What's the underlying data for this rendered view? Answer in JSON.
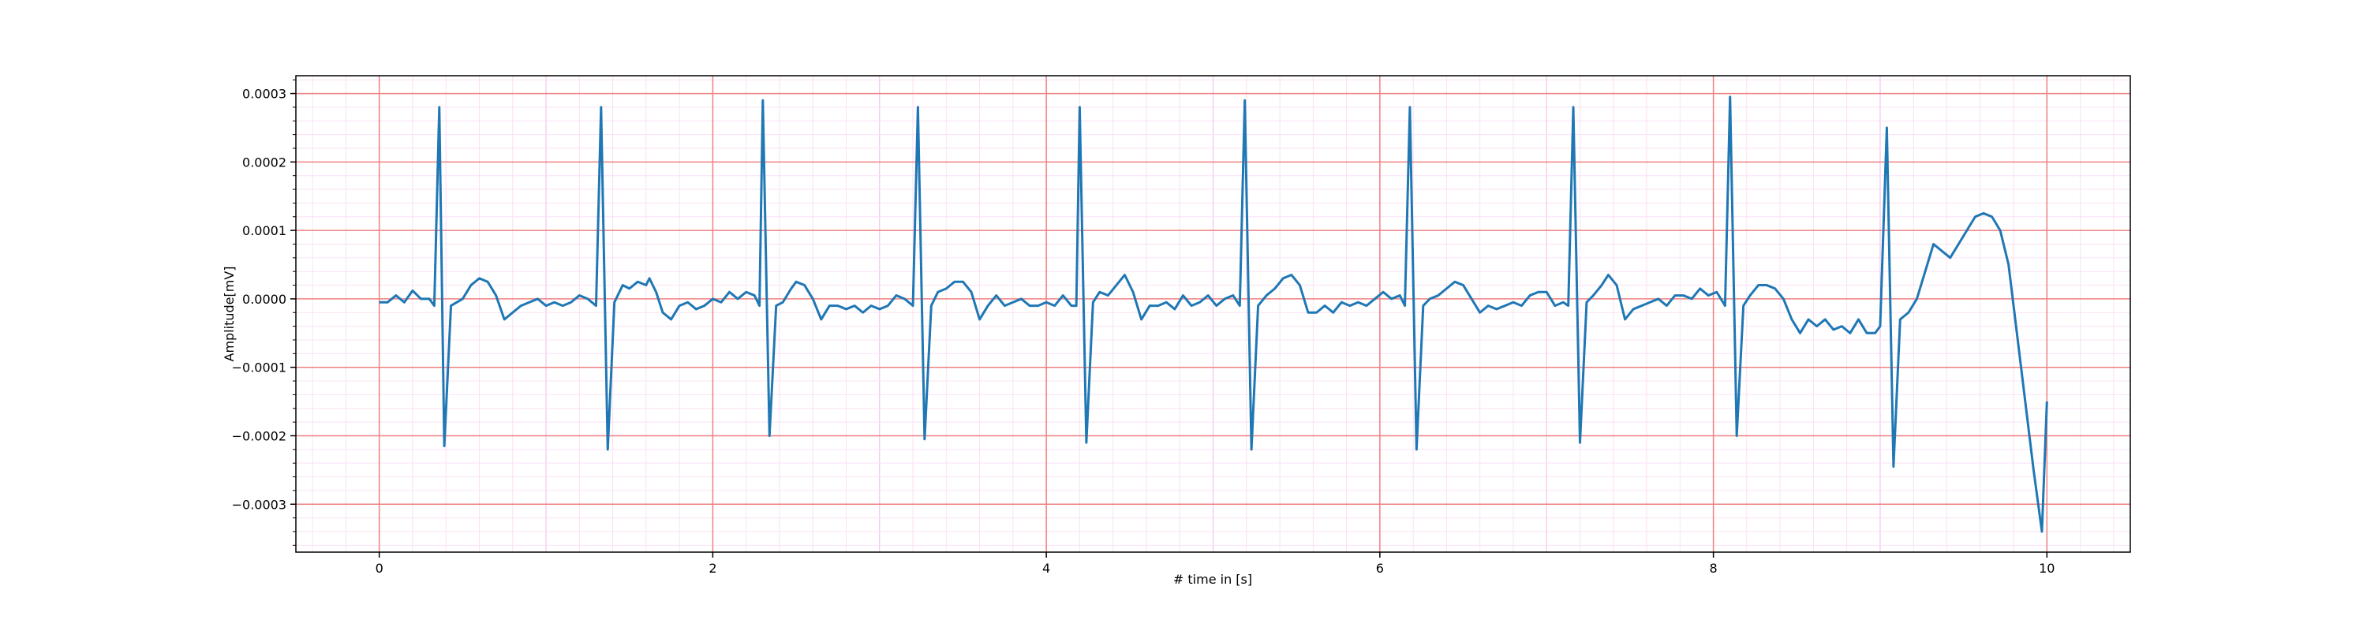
{
  "chart_data": {
    "type": "line",
    "xlabel": "# time in [s]",
    "ylabel": "Amplitude[mV]",
    "xlim": [
      -0.5,
      10.5
    ],
    "ylim": [
      -0.00037,
      0.000326
    ],
    "xticks": [
      0,
      2,
      4,
      6,
      8,
      10
    ],
    "yticks": [
      {
        "value": -0.0003,
        "label": "−0.0003"
      },
      {
        "value": -0.0002,
        "label": "−0.0002"
      },
      {
        "value": -0.0001,
        "label": "−0.0001"
      },
      {
        "value": 0,
        "label": "0.0000"
      },
      {
        "value": 0.0001,
        "label": "0.0001"
      },
      {
        "value": 0.0002,
        "label": "0.0002"
      },
      {
        "value": 0.0003,
        "label": "0.0003"
      }
    ],
    "grid": true,
    "color": "#1f77b4",
    "x": [
      0,
      0.05,
      0.1,
      0.15,
      0.2,
      0.25,
      0.3,
      0.33,
      0.36,
      0.39,
      0.43,
      0.5,
      0.55,
      0.6,
      0.65,
      0.7,
      0.75,
      0.8,
      0.85,
      0.9,
      0.95,
      1.0,
      1.05,
      1.1,
      1.15,
      1.2,
      1.25,
      1.3,
      1.33,
      1.37,
      1.41,
      1.46,
      1.5,
      1.55,
      1.6,
      1.62,
      1.66,
      1.7,
      1.75,
      1.8,
      1.85,
      1.9,
      1.95,
      2.0,
      2.05,
      2.1,
      2.15,
      2.2,
      2.25,
      2.28,
      2.3,
      2.34,
      2.38,
      2.42,
      2.47,
      2.5,
      2.55,
      2.6,
      2.65,
      2.7,
      2.75,
      2.8,
      2.85,
      2.9,
      2.95,
      3.0,
      3.05,
      3.1,
      3.15,
      3.2,
      3.23,
      3.27,
      3.31,
      3.35,
      3.4,
      3.45,
      3.5,
      3.55,
      3.6,
      3.65,
      3.7,
      3.75,
      3.8,
      3.85,
      3.9,
      3.95,
      4.0,
      4.05,
      4.1,
      4.15,
      4.18,
      4.2,
      4.24,
      4.28,
      4.32,
      4.37,
      4.42,
      4.47,
      4.52,
      4.57,
      4.62,
      4.67,
      4.72,
      4.77,
      4.82,
      4.87,
      4.92,
      4.97,
      5.02,
      5.07,
      5.12,
      5.16,
      5.19,
      5.23,
      5.27,
      5.32,
      5.37,
      5.42,
      5.47,
      5.52,
      5.57,
      5.62,
      5.67,
      5.72,
      5.77,
      5.82,
      5.87,
      5.92,
      5.97,
      6.02,
      6.07,
      6.12,
      6.15,
      6.18,
      6.22,
      6.26,
      6.3,
      6.35,
      6.4,
      6.45,
      6.5,
      6.55,
      6.6,
      6.65,
      6.7,
      6.75,
      6.8,
      6.85,
      6.9,
      6.95,
      7.0,
      7.05,
      7.1,
      7.13,
      7.16,
      7.2,
      7.24,
      7.28,
      7.33,
      7.37,
      7.42,
      7.47,
      7.52,
      7.57,
      7.62,
      7.67,
      7.72,
      7.77,
      7.82,
      7.87,
      7.92,
      7.97,
      8.02,
      8.07,
      8.1,
      8.14,
      8.18,
      8.22,
      8.27,
      8.32,
      8.37,
      8.42,
      8.47,
      8.52,
      8.57,
      8.62,
      8.67,
      8.72,
      8.77,
      8.82,
      8.87,
      8.92,
      8.97,
      9.0,
      9.04,
      9.08,
      9.12,
      9.17,
      9.22,
      9.27,
      9.32,
      9.37,
      9.42,
      9.47,
      9.52,
      9.57,
      9.62,
      9.67,
      9.72,
      9.77,
      9.82,
      9.87,
      9.92,
      9.97,
      10.0
    ],
    "values": [
      -5e-06,
      -5e-06,
      5e-06,
      -5e-06,
      1.2e-05,
      0.0,
      0.0,
      -1e-05,
      0.00028,
      -0.000215,
      -1e-05,
      0.0,
      2e-05,
      3e-05,
      2.5e-05,
      5e-06,
      -3e-05,
      -2e-05,
      -1e-05,
      -5e-06,
      0.0,
      -1e-05,
      -5e-06,
      -1e-05,
      -5e-06,
      5e-06,
      0.0,
      -1e-05,
      0.00028,
      -0.00022,
      -5e-06,
      2e-05,
      1.5e-05,
      2.5e-05,
      2e-05,
      3e-05,
      1e-05,
      -2e-05,
      -3e-05,
      -1e-05,
      -5e-06,
      -1.5e-05,
      -1e-05,
      0.0,
      -5e-06,
      1e-05,
      0.0,
      1e-05,
      5e-06,
      -1e-05,
      0.00029,
      -0.0002,
      -1e-05,
      -5e-06,
      1.5e-05,
      2.5e-05,
      2e-05,
      0.0,
      -3e-05,
      -1e-05,
      -1e-05,
      -1.5e-05,
      -1e-05,
      -2e-05,
      -1e-05,
      -1.5e-05,
      -1e-05,
      5e-06,
      0.0,
      -1e-05,
      0.00028,
      -0.000205,
      -1e-05,
      1e-05,
      1.5e-05,
      2.5e-05,
      2.5e-05,
      1e-05,
      -3e-05,
      -1e-05,
      5e-06,
      -1e-05,
      -5e-06,
      0.0,
      -1e-05,
      -1e-05,
      -5e-06,
      -1e-05,
      5e-06,
      -1e-05,
      -1e-05,
      0.00028,
      -0.00021,
      -5e-06,
      1e-05,
      5e-06,
      2e-05,
      3.5e-05,
      1e-05,
      -3e-05,
      -1e-05,
      -1e-05,
      -5e-06,
      -1.5e-05,
      5e-06,
      -1e-05,
      -5e-06,
      5e-06,
      -1e-05,
      0.0,
      5e-06,
      -1e-05,
      0.00029,
      -0.00022,
      -1e-05,
      5e-06,
      1.5e-05,
      3e-05,
      3.5e-05,
      2e-05,
      -2e-05,
      -2e-05,
      -1e-05,
      -2e-05,
      -5e-06,
      -1e-05,
      -5e-06,
      -1e-05,
      0.0,
      1e-05,
      0.0,
      5e-06,
      -1e-05,
      0.00028,
      -0.00022,
      -1e-05,
      0.0,
      5e-06,
      1.5e-05,
      2.5e-05,
      2e-05,
      0.0,
      -2e-05,
      -1e-05,
      -1.5e-05,
      -1e-05,
      -5e-06,
      -1e-05,
      5e-06,
      1e-05,
      1e-05,
      -1e-05,
      -5e-06,
      -1e-05,
      0.00028,
      -0.00021,
      -5e-06,
      5e-06,
      2e-05,
      3.5e-05,
      2e-05,
      -3e-05,
      -1.5e-05,
      -1e-05,
      -5e-06,
      0.0,
      -1e-05,
      5e-06,
      5e-06,
      0.0,
      1.5e-05,
      5e-06,
      1e-05,
      -1e-05,
      0.000295,
      -0.0002,
      -1e-05,
      5e-06,
      2e-05,
      2e-05,
      1.5e-05,
      0.0,
      -3e-05,
      -5e-05,
      -3e-05,
      -4e-05,
      -3e-05,
      -4.5e-05,
      -4e-05,
      -5e-05,
      -3e-05,
      -5e-05,
      -5e-05,
      -4e-05,
      0.00025,
      -0.000245,
      -3e-05,
      -2e-05,
      0.0,
      4e-05,
      8e-05,
      7e-05,
      6e-05,
      8e-05,
      0.0001,
      0.00012,
      0.000125,
      0.00012,
      0.0001,
      5e-05,
      -5e-05,
      -0.00015,
      -0.00025,
      -0.00034,
      -0.00015
    ]
  }
}
